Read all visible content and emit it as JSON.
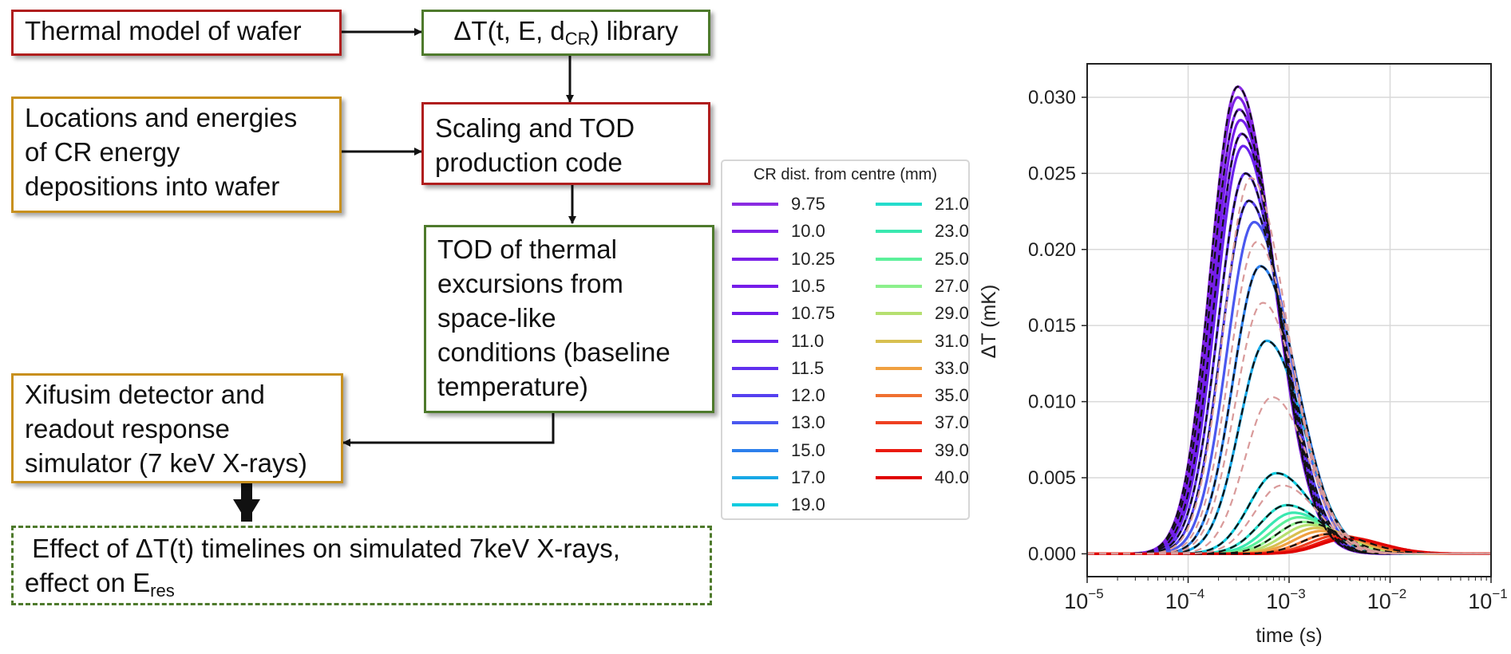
{
  "diagram": {
    "nodes": {
      "thermal_model": {
        "lines": [
          "Thermal model of wafer"
        ],
        "color": "#b01e1e"
      },
      "library": {
        "prefix": "ΔT(t, E, d",
        "sub": "CR",
        "suffix": ") library",
        "color": "#4e7a2c"
      },
      "locations": {
        "lines": [
          "Locations and energies",
          "of CR energy",
          "depositions into wafer"
        ],
        "color": "#c8901e"
      },
      "scaling": {
        "lines": [
          "Scaling and TOD",
          "production code"
        ],
        "color": "#b01e1e"
      },
      "tod": {
        "lines": [
          "TOD of thermal",
          "excursions from",
          "space-like",
          "conditions (baseline",
          "temperature)"
        ],
        "color": "#4e7a2c"
      },
      "xifusim": {
        "lines": [
          "Xifusim detector and",
          "readout response",
          "simulator (7 keV X-rays)"
        ],
        "color": "#c8901e"
      },
      "effect": {
        "line1": " Effect of ΔT(t) timelines on simulated 7keV X-rays,",
        "line2_prefix": "effect on E",
        "line2_sub": "res",
        "color": "#4e7a2c"
      }
    },
    "edges": [
      {
        "from": "thermal_model",
        "to": "library"
      },
      {
        "from": "library",
        "to": "scaling"
      },
      {
        "from": "locations",
        "to": "scaling"
      },
      {
        "from": "scaling",
        "to": "tod"
      },
      {
        "from": "tod",
        "to": "xifusim"
      },
      {
        "from": "xifusim",
        "to": "effect"
      }
    ]
  },
  "chart_data": {
    "type": "line",
    "ylabel": "ΔT (mK)",
    "xlabel": "time (s)",
    "x_scale": "log",
    "xlim": [
      1e-05,
      0.1
    ],
    "ylim": [
      -0.0015,
      0.0322
    ],
    "x_ticks": [
      {
        "value": 1e-05,
        "base": "10",
        "exp": "−5"
      },
      {
        "value": 0.0001,
        "base": "10",
        "exp": "−4"
      },
      {
        "value": 0.001,
        "base": "10",
        "exp": "−3"
      },
      {
        "value": 0.01,
        "base": "10",
        "exp": "−2"
      },
      {
        "value": 0.1,
        "base": "10",
        "exp": "−1"
      }
    ],
    "y_ticks": [
      "0.000",
      "0.005",
      "0.010",
      "0.015",
      "0.020",
      "0.025",
      "0.030"
    ],
    "grid": true,
    "legend": {
      "title": "CR dist. from centre (mm)",
      "placement": "left-outside",
      "columns": 2
    },
    "series": [
      {
        "name": "9.75",
        "color": "#8a2be2",
        "peak": 0.0307,
        "t_peak": 0.00031
      },
      {
        "name": "10.0",
        "color": "#7f22e6",
        "peak": 0.03,
        "t_peak": 0.00031
      },
      {
        "name": "10.25",
        "color": "#7a1fe8",
        "peak": 0.0292,
        "t_peak": 0.00032
      },
      {
        "name": "10.5",
        "color": "#761de9",
        "peak": 0.0285,
        "t_peak": 0.00033
      },
      {
        "name": "10.75",
        "color": "#701cea",
        "peak": 0.0276,
        "t_peak": 0.00034
      },
      {
        "name": "11.0",
        "color": "#6a22ec",
        "peak": 0.0268,
        "t_peak": 0.00035
      },
      {
        "name": "11.5",
        "color": "#6030ee",
        "peak": 0.025,
        "t_peak": 0.00037
      },
      {
        "name": "12.0",
        "color": "#5540f0",
        "peak": 0.0232,
        "t_peak": 0.0004
      },
      {
        "name": "13.0",
        "color": "#4a58ef",
        "peak": 0.0218,
        "t_peak": 0.00045
      },
      {
        "name": "15.0",
        "color": "#2d80ec",
        "peak": 0.0189,
        "t_peak": 0.00052
      },
      {
        "name": "17.0",
        "color": "#18a8e6",
        "peak": 0.014,
        "t_peak": 0.0006
      },
      {
        "name": "19.0",
        "color": "#10cce0",
        "peak": 0.0053,
        "t_peak": 0.00075
      },
      {
        "name": "21.0",
        "color": "#24dccc",
        "peak": 0.0032,
        "t_peak": 0.00095
      },
      {
        "name": "23.0",
        "color": "#3ae8b0",
        "peak": 0.0027,
        "t_peak": 0.0011
      },
      {
        "name": "25.0",
        "color": "#5cf09a",
        "peak": 0.0024,
        "t_peak": 0.00125
      },
      {
        "name": "27.0",
        "color": "#8cf08c",
        "peak": 0.0021,
        "t_peak": 0.0014
      },
      {
        "name": "29.0",
        "color": "#b6e070",
        "peak": 0.0019,
        "t_peak": 0.0016
      },
      {
        "name": "31.0",
        "color": "#d8c050",
        "peak": 0.0017,
        "t_peak": 0.00185
      },
      {
        "name": "33.0",
        "color": "#f0a040",
        "peak": 0.0015,
        "t_peak": 0.0021
      },
      {
        "name": "35.0",
        "color": "#f07030",
        "peak": 0.0013,
        "t_peak": 0.0025
      },
      {
        "name": "37.0",
        "color": "#ee4020",
        "peak": 0.0012,
        "t_peak": 0.003
      },
      {
        "name": "39.0",
        "color": "#ea1a10",
        "peak": 0.0011,
        "t_peak": 0.0035
      },
      {
        "name": "40.0",
        "color": "#e00000",
        "peak": 0.001,
        "t_peak": 0.0038
      }
    ],
    "dashed_fits": [
      {
        "color": "#111111",
        "peak": 0.0307,
        "t_peak": 0.00031
      },
      {
        "color": "#111111",
        "peak": 0.0292,
        "t_peak": 0.00032
      },
      {
        "color": "#111111",
        "peak": 0.0276,
        "t_peak": 0.00034
      },
      {
        "color": "#111111",
        "peak": 0.025,
        "t_peak": 0.00037
      },
      {
        "color": "#111111",
        "peak": 0.0232,
        "t_peak": 0.0004
      },
      {
        "color": "#111111",
        "peak": 0.0189,
        "t_peak": 0.00052
      },
      {
        "color": "#111111",
        "peak": 0.014,
        "t_peak": 0.0006
      },
      {
        "color": "#111111",
        "peak": 0.0053,
        "t_peak": 0.00075
      },
      {
        "color": "#111111",
        "peak": 0.0032,
        "t_peak": 0.00095
      },
      {
        "color": "#111111",
        "peak": 0.0021,
        "t_peak": 0.0014
      },
      {
        "color": "#111111",
        "peak": 0.0013,
        "t_peak": 0.0025
      },
      {
        "color": "#d99a9a",
        "peak": 0.0247,
        "t_peak": 0.00042
      },
      {
        "color": "#d99a9a",
        "peak": 0.0205,
        "t_peak": 0.00048
      },
      {
        "color": "#d99a9a",
        "peak": 0.0165,
        "t_peak": 0.00055
      },
      {
        "color": "#d99a9a",
        "peak": 0.0103,
        "t_peak": 0.00068
      },
      {
        "color": "#d99a9a",
        "peak": 0.0045,
        "t_peak": 0.00085
      }
    ]
  }
}
